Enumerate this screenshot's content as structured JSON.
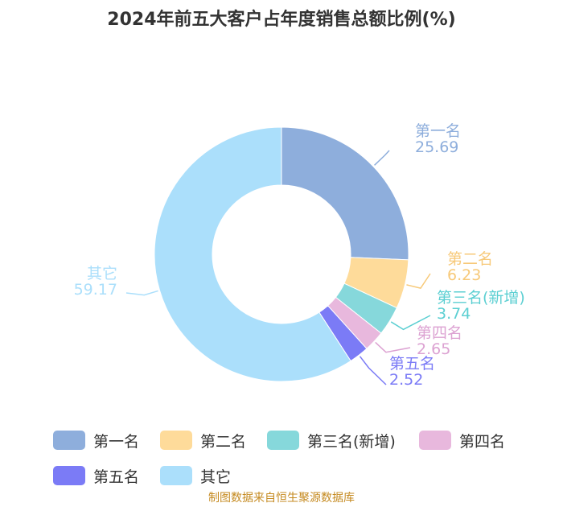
{
  "chart_data": {
    "type": "pie",
    "title": "2024年前五大客户占年度销售总额比例(%)",
    "categories": [
      "第一名",
      "第二名",
      "第三名(新增)",
      "第四名",
      "第五名",
      "其它"
    ],
    "values": [
      25.69,
      6.23,
      3.74,
      2.65,
      2.52,
      59.17
    ],
    "colors": [
      "#8eaedc",
      "#fedb9a",
      "#86d8db",
      "#e8b8dd",
      "#7b7bf6",
      "#abdffb"
    ],
    "label_colors": [
      "#8eaedc",
      "#f7c979",
      "#5ccfd2",
      "#dca2d2",
      "#7b7bf6",
      "#abdffb"
    ],
    "legend_position": "bottom",
    "donut": true
  },
  "source": "制图数据来自恒生聚源数据库"
}
